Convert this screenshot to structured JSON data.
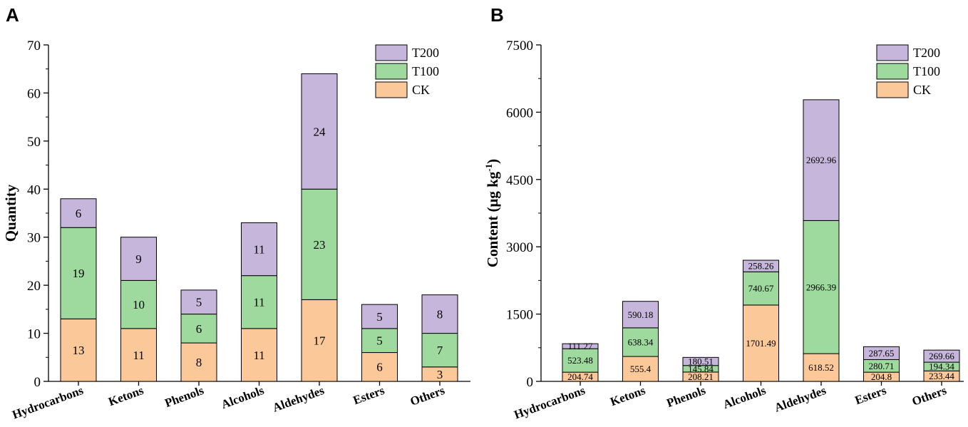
{
  "panels": {
    "a": {
      "letter": "A"
    },
    "b": {
      "letter": "B"
    }
  },
  "colors": {
    "CK": "#FBC89A",
    "T100": "#9ED99D",
    "T200": "#C7B6DB"
  },
  "chart_data": [
    {
      "type": "bar",
      "stacked": true,
      "title": "",
      "xlabel": "",
      "ylabel": "Quantity",
      "ylim": [
        0,
        70
      ],
      "yticks": [
        "0",
        "10",
        "20",
        "30",
        "40",
        "50",
        "60",
        "70"
      ],
      "legend_position": "top-right",
      "categories": [
        "Hydrocarbons",
        "Ketons",
        "Phenols",
        "Alcohols",
        "Aldehydes",
        "Esters",
        "Others"
      ],
      "series": [
        {
          "name": "CK",
          "values": [
            13,
            11,
            8,
            11,
            17,
            6,
            3
          ],
          "labels": [
            "13",
            "11",
            "8",
            "11",
            "17",
            "6",
            "3"
          ]
        },
        {
          "name": "T100",
          "values": [
            19,
            10,
            6,
            11,
            23,
            5,
            7
          ],
          "labels": [
            "19",
            "10",
            "6",
            "11",
            "23",
            "5",
            "7"
          ]
        },
        {
          "name": "T200",
          "values": [
            6,
            9,
            5,
            11,
            24,
            5,
            8
          ],
          "labels": [
            "6",
            "9",
            "5",
            "11",
            "24",
            "5",
            "8"
          ]
        }
      ],
      "legend": [
        "T200",
        "T100",
        "CK"
      ]
    },
    {
      "type": "bar",
      "stacked": true,
      "title": "",
      "xlabel": "",
      "ylabel": "Content (μg kg",
      "ylabel_sup": "-1",
      "ylabel_end": ")",
      "ylim": [
        0,
        7500
      ],
      "yticks": [
        "0",
        "1500",
        "3000",
        "4500",
        "6000",
        "7500"
      ],
      "legend_position": "top-right",
      "categories": [
        "Hydrocarbons",
        "Ketons",
        "Phenols",
        "Alcohols",
        "Aldehydes",
        "Esters",
        "Others"
      ],
      "series": [
        {
          "name": "CK",
          "values": [
            204.74,
            555.4,
            208.21,
            1701.49,
            618.52,
            204.8,
            233.44
          ],
          "labels": [
            "204.74",
            "555.4",
            "208.21",
            "1701.49",
            "618.52",
            "204.8",
            "233.44"
          ]
        },
        {
          "name": "T100",
          "values": [
            523.48,
            638.34,
            145.84,
            740.67,
            2966.39,
            280.71,
            194.34
          ],
          "labels": [
            "523.48",
            "638.34",
            "145.84",
            "740.67",
            "2966.39",
            "280.71",
            "194.34"
          ]
        },
        {
          "name": "T200",
          "values": [
            111.27,
            590.18,
            180.51,
            258.26,
            2692.96,
            287.65,
            269.66
          ],
          "labels": [
            "111.27",
            "590.18",
            "180.51",
            "258.26",
            "2692.96",
            "287.65",
            "269.66"
          ]
        }
      ],
      "legend": [
        "T200",
        "T100",
        "CK"
      ]
    }
  ]
}
